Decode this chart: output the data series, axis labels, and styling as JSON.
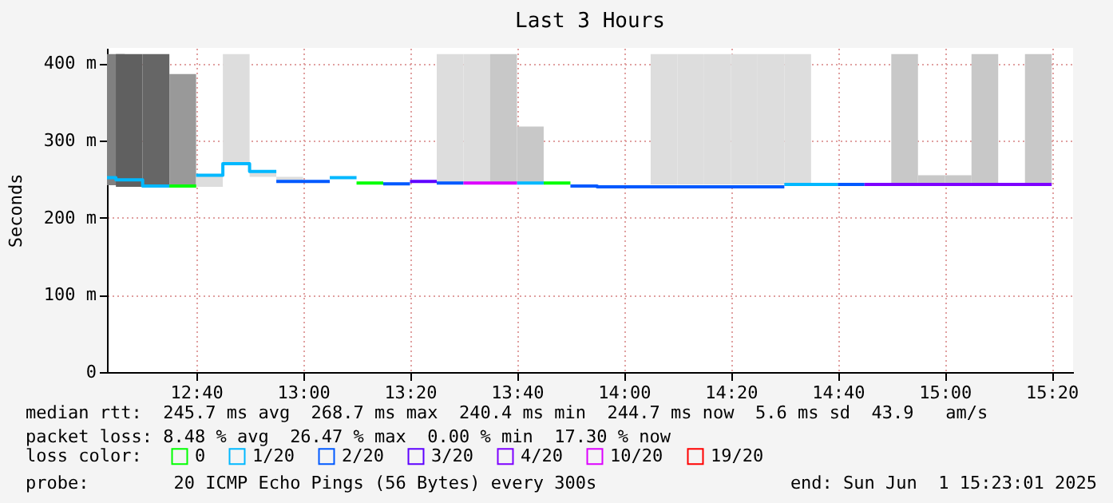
{
  "chart_data": {
    "type": "step",
    "title": "Last 3 Hours",
    "ylabel": "Seconds",
    "legend_title": "loss color:",
    "legend": "bottom",
    "grid": true,
    "xlim": [
      12.3889,
      15.4
    ],
    "ylim": [
      0,
      420
    ],
    "xticks": [
      {
        "value": 12.6667,
        "label": "12:40"
      },
      {
        "value": 13,
        "label": "13:00"
      },
      {
        "value": 13.3333,
        "label": "13:20"
      },
      {
        "value": 13.6667,
        "label": "13:40"
      },
      {
        "value": 14,
        "label": "14:00"
      },
      {
        "value": 14.3333,
        "label": "14:20"
      },
      {
        "value": 14.6667,
        "label": "14:40"
      },
      {
        "value": 15,
        "label": "15:00"
      },
      {
        "value": 15.3333,
        "label": "15:20"
      }
    ],
    "yticks": [
      0,
      {
        "value": 100,
        "label": "100 m"
      },
      {
        "value": 200,
        "label": "200 m"
      },
      {
        "value": 300,
        "label": "300 m"
      },
      {
        "value": 400,
        "label": "400 m"
      }
    ],
    "series": [
      {
        "type": "bar",
        "x": [
          12.4028,
          12.4583,
          12.5417,
          12.625,
          12.7083,
          12.7917,
          12.875,
          12.9583,
          13.4583,
          13.5417,
          13.625,
          13.7083,
          14.125,
          14.2083,
          14.2917,
          14.375,
          14.4583,
          14.5417,
          14.875,
          14.9583,
          15.0417,
          15.125,
          15.2917
        ],
        "base": [
          242,
          240,
          239,
          239,
          240,
          270,
          253,
          247,
          245,
          245,
          245,
          245,
          243,
          243,
          243,
          243,
          243,
          243,
          243,
          243,
          243,
          243,
          243
        ],
        "values": [
          170,
          172,
          173,
          147,
          15,
          142,
          7,
          6,
          167,
          167,
          167,
          73,
          169,
          169,
          169,
          169,
          169,
          169,
          169,
          12,
          12,
          169,
          169
        ],
        "colors": [
          "#808080",
          "#606060",
          "#666666",
          "#999999",
          "#dddddd",
          "#dddddd",
          "#dddddd",
          "#dddddd",
          "#dddddd",
          "#dddddd",
          "#c8c8c8",
          "#c8c8c8",
          "#dddddd",
          "#dddddd",
          "#dddddd",
          "#dddddd",
          "#dddddd",
          "#dddddd",
          "#c8c8c8",
          "#c8c8c8",
          "#c8c8c8",
          "#c8c8c8",
          "#c8c8c8"
        ]
      },
      {
        "name": "0",
        "color": "#00ff00",
        "x": [
          12.5833,
          12.6667,
          null,
          13.1667,
          13.25,
          null,
          13.75,
          13.8333
        ],
        "values": [
          241,
          241,
          null,
          245,
          245,
          null,
          245,
          245
        ]
      },
      {
        "name": "1/20",
        "color": "#00b8ff",
        "x": [
          12.3889,
          12.4167,
          12.5,
          12.5833,
          null,
          12.6667,
          12.75,
          12.8333,
          12.9167,
          null,
          13.0833,
          13.1667,
          null,
          13.6667,
          13.75,
          null,
          14.5,
          14.5833,
          14.6667
        ],
        "values": [
          252,
          249,
          241,
          241,
          null,
          255,
          270,
          260,
          260,
          null,
          252,
          252,
          null,
          245,
          245,
          null,
          243,
          243,
          243
        ]
      },
      {
        "name": "2/20",
        "color": "#0059ff",
        "x": [
          12.9167,
          13,
          13.0833,
          null,
          13.25,
          13.3333,
          null,
          13.4167,
          13.5,
          null,
          13.8333,
          13.9167,
          14,
          14.0833,
          14.1667,
          14.25,
          14.3333,
          14.4167,
          14.5,
          null,
          14.6667,
          14.75
        ],
        "values": [
          247,
          247,
          247,
          null,
          244,
          244,
          null,
          245,
          245,
          null,
          241,
          240,
          240,
          240,
          240,
          240,
          240,
          240,
          240,
          null,
          243,
          243
        ]
      },
      {
        "name": "3/20",
        "color": "#5e00ff",
        "x": [
          13.3333,
          13.4167
        ],
        "values": [
          247,
          247
        ]
      },
      {
        "name": "4/20",
        "color": "#7e00ff",
        "x": [
          14.75,
          14.8333,
          14.9167,
          15,
          15.0833,
          15.1667,
          15.25,
          15.3333
        ],
        "values": [
          243,
          243,
          243,
          243,
          243,
          243,
          243,
          243
        ]
      },
      {
        "name": "10/20",
        "color": "#dd00ff",
        "x": [
          13.5,
          13.5833,
          13.6667
        ],
        "values": [
          245,
          245,
          245
        ]
      },
      {
        "name": "19/20",
        "color": "#ff0000"
      }
    ],
    "annotations": [
      "median rtt:  245.7 ms avg  268.7 ms max  240.4 ms min  244.7 ms now  5.6 ms sd  43.9   am/s",
      "packet loss: 8.48 % avg  26.47 % max  0.00 % min  17.30 % now",
      "probe:        20 ICMP Echo Pings (56 Bytes) every 300s",
      "end: Sun Jun  1 15:23:01 2025"
    ]
  }
}
